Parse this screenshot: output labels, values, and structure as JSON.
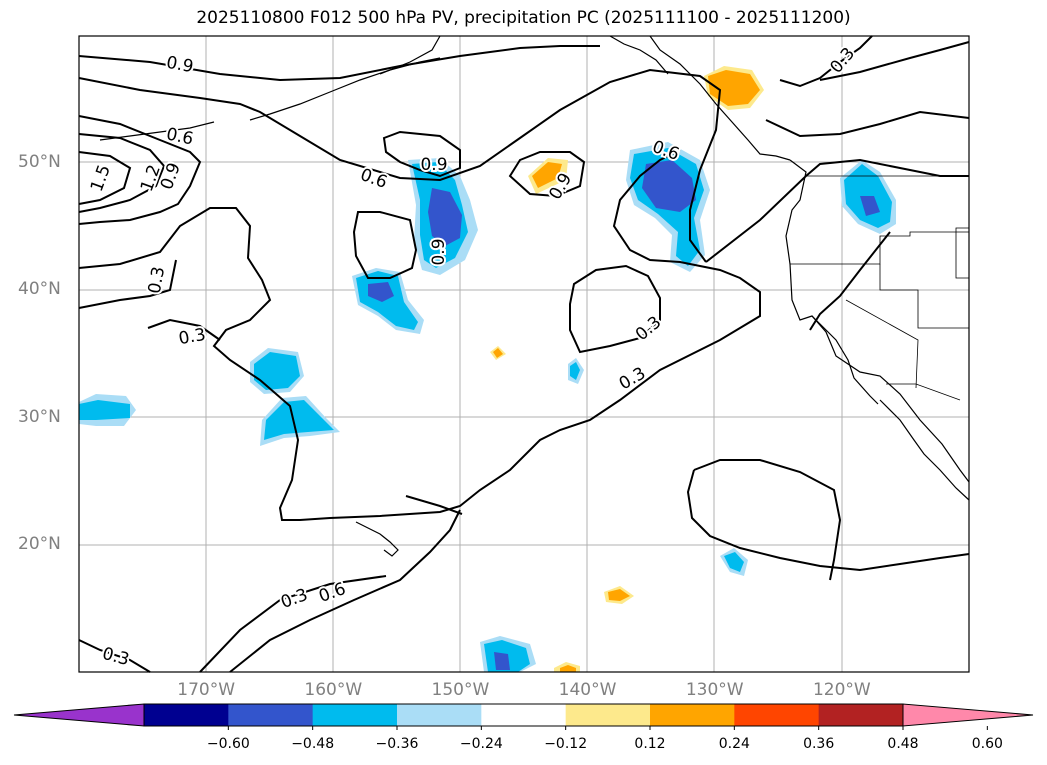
{
  "title": "2025110800 F012 500 hPa PV, precipitation PC (2025111100 - 2025111200)",
  "map": {
    "lon_range": [
      -180,
      -110
    ],
    "lat_range": [
      10,
      60
    ],
    "lat_labels": [
      {
        "lat": 50,
        "text": "50°N"
      },
      {
        "lat": 40,
        "text": "40°N"
      },
      {
        "lat": 30,
        "text": "30°N"
      },
      {
        "lat": 20,
        "text": "20°N"
      }
    ],
    "lon_labels": [
      {
        "lon": -170,
        "text": "170°W"
      },
      {
        "lon": -160,
        "text": "160°W"
      },
      {
        "lon": -150,
        "text": "150°W"
      },
      {
        "lon": -140,
        "text": "140°W"
      },
      {
        "lon": -130,
        "text": "130°W"
      },
      {
        "lon": -120,
        "text": "120°W"
      }
    ],
    "contour_labels": [
      "0.9",
      "0.6",
      "1.5",
      "1.2",
      "0.9",
      "0.3",
      "0.3",
      "0.6",
      "0.9",
      "0.9",
      "0.9",
      "0.6",
      "0.3",
      "0.3",
      "0.3",
      "0.6",
      "0.3",
      "0.3"
    ]
  },
  "colorbar": {
    "colors": [
      "#9933cc",
      "#000090",
      "#3355cc",
      "#00bbee",
      "#aaddf6",
      "#ffffff",
      "#fde98c",
      "#ffa500",
      "#ff4500",
      "#b22222",
      "#ff88aa"
    ],
    "ticks": [
      "−0.60",
      "−0.48",
      "−0.36",
      "−0.24",
      "−0.12",
      "0.12",
      "0.24",
      "0.36",
      "0.48",
      "0.60"
    ]
  },
  "colors": {
    "grid": "#b0b0b0",
    "axis_labels": "#808080",
    "contour": "#000000"
  }
}
